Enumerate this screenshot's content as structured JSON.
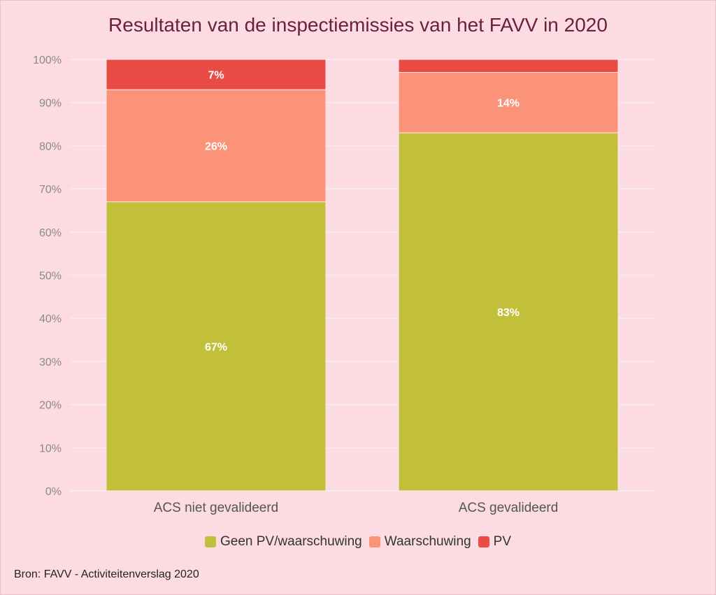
{
  "chart_data": {
    "type": "bar",
    "stacked": true,
    "title": "Resultaten van de inspectiemissies van het FAVV in 2020",
    "categories": [
      "ACS niet gevalideerd",
      "ACS gevalideerd"
    ],
    "series": [
      {
        "name": "Geen PV/waarschuwing",
        "color": "#c2bf3a",
        "values": [
          67,
          83
        ],
        "labels": [
          "67%",
          "83%"
        ]
      },
      {
        "name": "Waarschuwing",
        "color": "#fb9379",
        "values": [
          26,
          14
        ],
        "labels": [
          "26%",
          "14%"
        ]
      },
      {
        "name": "PV",
        "color": "#e84c44",
        "values": [
          7,
          3
        ],
        "labels": [
          "7%",
          ""
        ]
      }
    ],
    "ylim": [
      0,
      100
    ],
    "yticks": [
      "0%",
      "10%",
      "20%",
      "30%",
      "40%",
      "50%",
      "60%",
      "70%",
      "80%",
      "90%",
      "100%"
    ],
    "grid": true,
    "legend_position": "bottom-center",
    "source": "Bron: FAVV - Activiteitenverslag 2020"
  }
}
